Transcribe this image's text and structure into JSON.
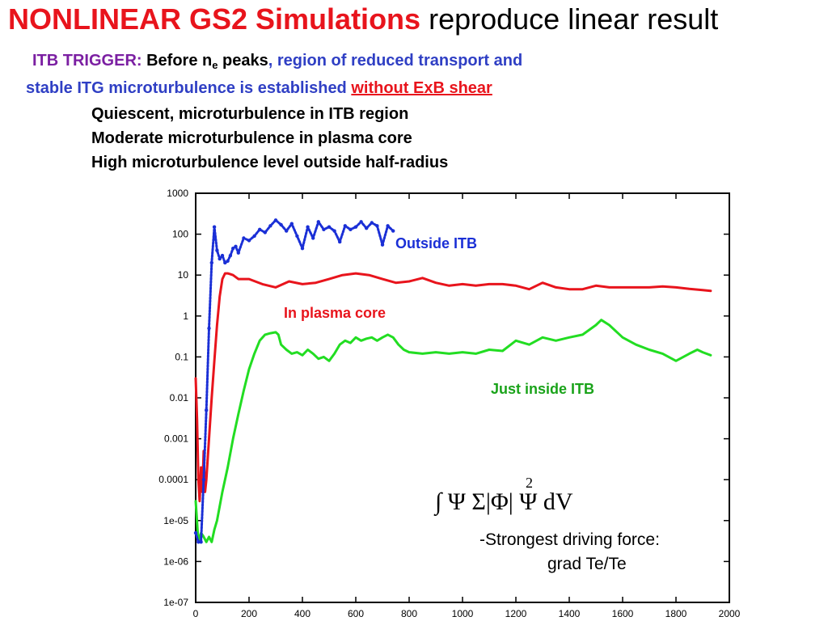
{
  "title": {
    "highlight": "NONLINEAR GS2 Simulations",
    "rest": "reproduce linear result"
  },
  "trigger": {
    "label": "ITB TRIGGER:",
    "before_text": "Before n",
    "before_sub": "e",
    "peaks": " peaks",
    "region_text": ", region of reduced transport and",
    "stable_text": "stable ITG microturbulence is established",
    "shear_text": "without ExB shear"
  },
  "bullets": [
    "Quiescent, microturbulence in ITB region",
    "Moderate microturbulence in plasma core",
    "High microturbulence level outside half-radius"
  ],
  "formula": {
    "main": "∫ Ψ Σ|Φ| Ψ dV",
    "exponent": "2"
  },
  "notes": {
    "line1": "-Strongest driving force:",
    "line2": "grad Te/Te"
  },
  "colors": {
    "title_red": "#e8141c",
    "purple": "#7b1fa2",
    "blue_text": "#2f3fc4",
    "outside": "#1a2fd6",
    "core": "#e8141c",
    "inside": "#22dd22",
    "inside_label": "#1aa31a"
  },
  "chart_data": {
    "type": "line",
    "title": "",
    "xlabel": "",
    "ylabel": "",
    "xlim": [
      0,
      2000
    ],
    "ylim": [
      1e-07,
      1000
    ],
    "yscale": "log",
    "grid": false,
    "x_ticks": [
      0,
      200,
      400,
      600,
      800,
      1000,
      1200,
      1400,
      1600,
      1800,
      2000
    ],
    "y_ticks": [
      "1e-07",
      "1e-06",
      "1e-05",
      "0.0001",
      "0.001",
      "0.01",
      "0.1",
      "1",
      "10",
      "100",
      "1000"
    ],
    "series": [
      {
        "name": "Outside ITB",
        "color": "#1a2fd6",
        "style": "dotted",
        "label_color": "#1a2fd6",
        "x": [
          0,
          10,
          20,
          30,
          40,
          50,
          60,
          70,
          80,
          90,
          100,
          110,
          120,
          130,
          140,
          150,
          160,
          180,
          200,
          220,
          240,
          260,
          280,
          300,
          320,
          340,
          360,
          380,
          400,
          420,
          440,
          460,
          480,
          500,
          520,
          540,
          560,
          580,
          600,
          620,
          640,
          660,
          680,
          700,
          720,
          740
        ],
        "values": [
          5e-06,
          3e-06,
          3e-06,
          0.0001,
          0.005,
          0.5,
          20,
          150,
          40,
          25,
          30,
          20,
          22,
          30,
          45,
          50,
          35,
          80,
          70,
          90,
          130,
          110,
          160,
          220,
          170,
          120,
          180,
          90,
          45,
          150,
          80,
          200,
          130,
          150,
          120,
          65,
          160,
          130,
          150,
          200,
          140,
          190,
          160,
          55,
          160,
          120
        ]
      },
      {
        "name": "In plasma core",
        "color": "#e8141c",
        "style": "solid",
        "label_color": "#e8141c",
        "x": [
          0,
          5,
          10,
          15,
          20,
          25,
          30,
          35,
          40,
          50,
          60,
          70,
          80,
          90,
          100,
          110,
          120,
          130,
          140,
          160,
          200,
          250,
          300,
          350,
          400,
          450,
          500,
          550,
          600,
          650,
          700,
          750,
          800,
          850,
          900,
          950,
          1000,
          1050,
          1100,
          1150,
          1200,
          1250,
          1300,
          1350,
          1400,
          1450,
          1500,
          1550,
          1600,
          1650,
          1700,
          1750,
          1800,
          1850,
          1900,
          1930
        ],
        "values": [
          0.03,
          0.003,
          0.0001,
          3e-05,
          0.0002,
          5e-05,
          0.0005,
          5e-05,
          0.0001,
          0.001,
          0.01,
          0.08,
          0.6,
          3,
          8,
          11,
          11,
          10.5,
          10,
          8,
          8,
          6,
          5,
          7,
          6,
          6.5,
          8,
          10,
          11,
          10,
          8,
          6.5,
          7,
          8.5,
          6.5,
          5.5,
          6,
          5.5,
          6,
          6,
          5.5,
          4.5,
          6.5,
          5,
          4.5,
          4.5,
          5.5,
          5,
          5,
          5,
          5,
          5.3,
          5,
          4.6,
          4.3,
          4.1
        ]
      },
      {
        "name": "Just inside ITB",
        "color": "#22dd22",
        "style": "solid",
        "label_color": "#1aa31a",
        "x": [
          0,
          10,
          20,
          30,
          40,
          50,
          60,
          70,
          80,
          100,
          120,
          140,
          160,
          180,
          200,
          220,
          240,
          260,
          280,
          300,
          310,
          320,
          340,
          360,
          380,
          400,
          420,
          440,
          460,
          480,
          500,
          520,
          540,
          560,
          580,
          600,
          620,
          640,
          660,
          680,
          700,
          720,
          740,
          760,
          780,
          800,
          850,
          900,
          950,
          1000,
          1050,
          1100,
          1150,
          1200,
          1250,
          1300,
          1350,
          1400,
          1450,
          1500,
          1520,
          1550,
          1600,
          1650,
          1700,
          1750,
          1800,
          1850,
          1880,
          1900,
          1930
        ],
        "values": [
          3e-05,
          3e-06,
          5e-06,
          4e-06,
          3e-06,
          4e-06,
          3e-06,
          6e-06,
          1e-05,
          5e-05,
          0.0002,
          0.001,
          0.004,
          0.015,
          0.05,
          0.12,
          0.25,
          0.35,
          0.38,
          0.4,
          0.35,
          0.2,
          0.15,
          0.12,
          0.13,
          0.11,
          0.15,
          0.12,
          0.09,
          0.1,
          0.08,
          0.12,
          0.2,
          0.25,
          0.22,
          0.3,
          0.25,
          0.28,
          0.3,
          0.25,
          0.3,
          0.35,
          0.3,
          0.2,
          0.15,
          0.13,
          0.12,
          0.13,
          0.12,
          0.13,
          0.12,
          0.15,
          0.14,
          0.25,
          0.2,
          0.3,
          0.25,
          0.3,
          0.35,
          0.6,
          0.8,
          0.6,
          0.3,
          0.2,
          0.15,
          0.12,
          0.08,
          0.12,
          0.15,
          0.13,
          0.11
        ]
      }
    ]
  }
}
